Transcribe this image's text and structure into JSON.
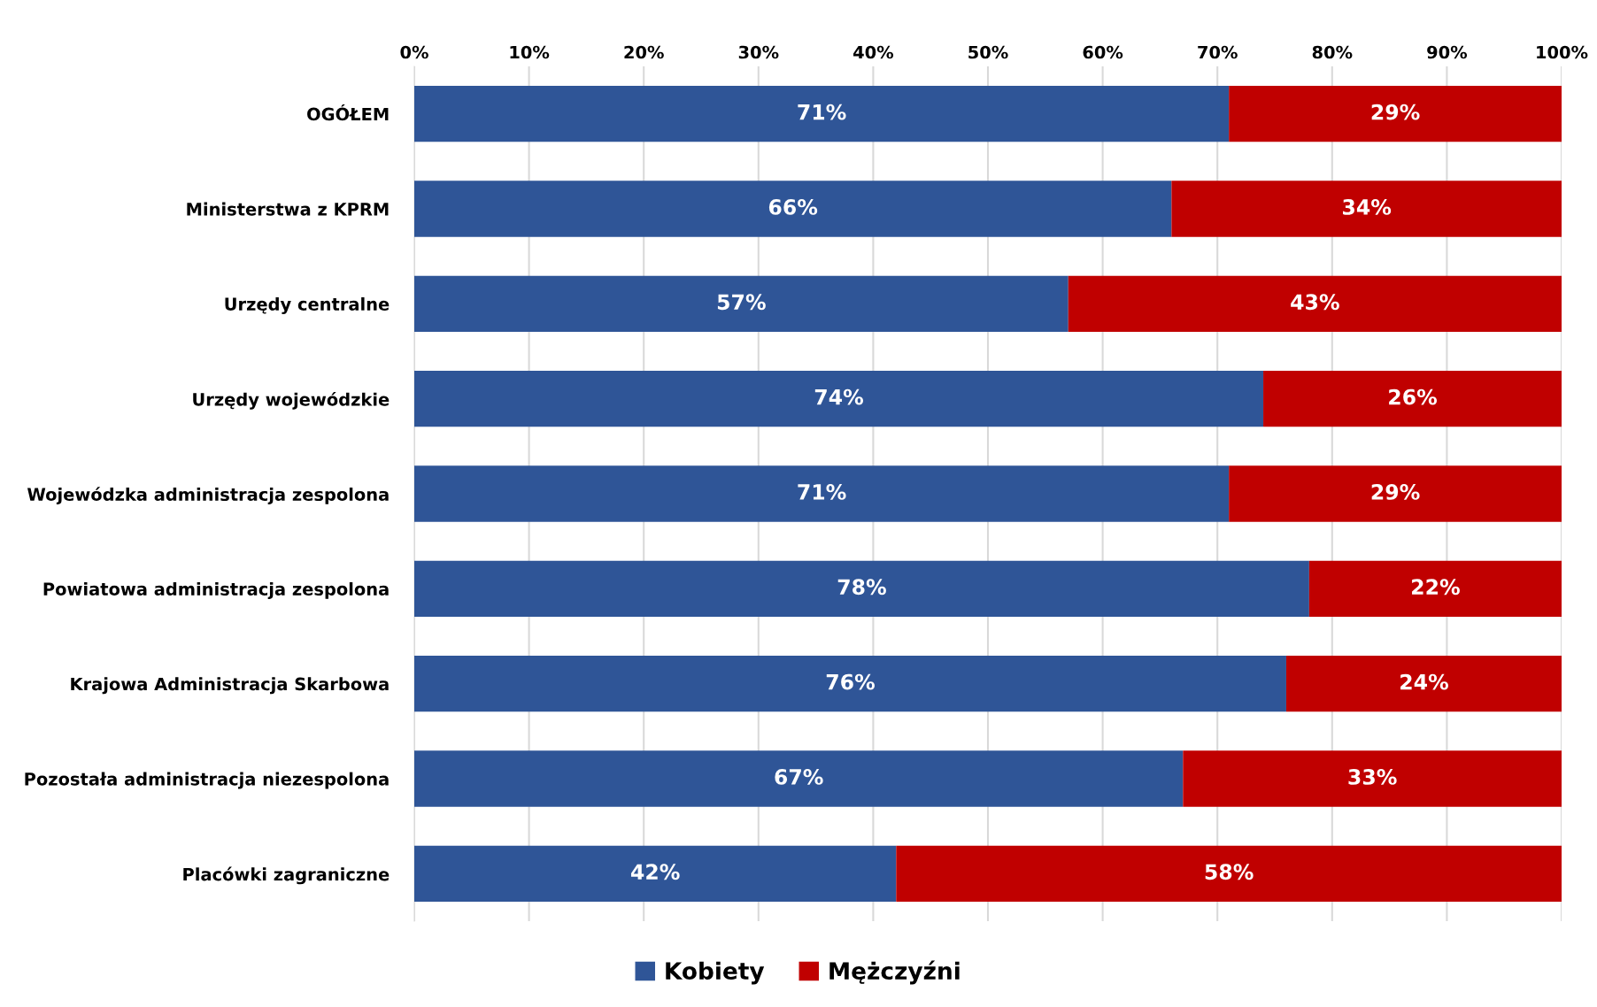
{
  "chart_data": {
    "type": "bar",
    "orientation": "horizontal",
    "stacked": true,
    "categories": [
      "OGÓŁEM",
      "Ministerstwa z KPRM",
      "Urzędy centralne",
      "Urzędy wojewódzkie",
      "Wojewódzka administracja zespolona",
      "Powiatowa administracja zespolona",
      "Krajowa Administracja Skarbowa",
      "Pozostała administracja niezespolona",
      "Placówki zagraniczne"
    ],
    "series": [
      {
        "name": "Kobiety",
        "color": "#2f5597",
        "values": [
          71,
          66,
          57,
          74,
          71,
          78,
          76,
          67,
          42
        ]
      },
      {
        "name": "Mężczyźni",
        "color": "#c00000",
        "values": [
          29,
          34,
          43,
          26,
          29,
          22,
          24,
          33,
          58
        ]
      }
    ],
    "value_labels": [
      [
        "71%",
        "66%",
        "57%",
        "74%",
        "71%",
        "78%",
        "76%",
        "67%",
        "42%"
      ],
      [
        "29%",
        "34%",
        "43%",
        "26%",
        "29%",
        "22%",
        "24%",
        "33%",
        "58%"
      ]
    ],
    "xlim": [
      0,
      100
    ],
    "xticks": [
      {
        "value": 0,
        "label": "0%"
      },
      {
        "value": 10,
        "label": "10%"
      },
      {
        "value": 20,
        "label": "20%"
      },
      {
        "value": 30,
        "label": "30%"
      },
      {
        "value": 40,
        "label": "40%"
      },
      {
        "value": 50,
        "label": "50%"
      },
      {
        "value": 60,
        "label": "60%"
      },
      {
        "value": 70,
        "label": "70%"
      },
      {
        "value": 80,
        "label": "80%"
      },
      {
        "value": 90,
        "label": "90%"
      },
      {
        "value": 100,
        "label": "100%"
      }
    ],
    "grid": "x",
    "legend": "bottom"
  }
}
